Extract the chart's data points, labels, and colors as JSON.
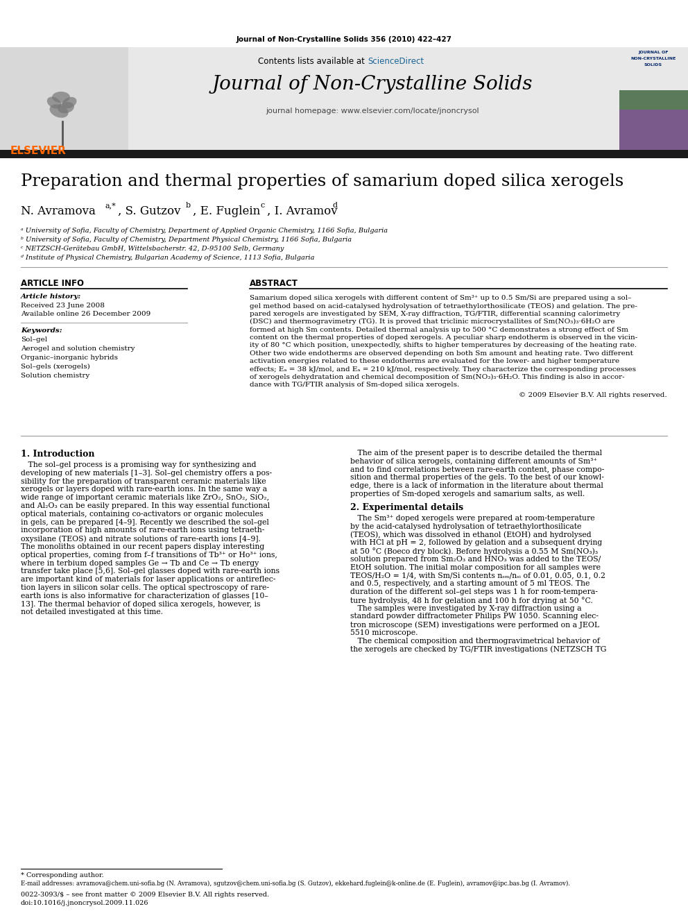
{
  "page_title": "Journal of Non-Crystalline Solids 356 (2010) 422–427",
  "journal_name": "Journal of Non-Crystalline Solids",
  "journal_homepage": "journal homepage: www.elsevier.com/locate/jnoncrysol",
  "contents_text": "Contents lists available at ScienceDirect",
  "paper_title": "Preparation and thermal properties of samarium doped silica xerogels",
  "affil1": "ᵃ University of Sofia, Faculty of Chemistry, Department of Applied Organic Chemistry, 1166 Sofia, Bulgaria",
  "affil2": "ᵇ University of Sofia, Faculty of Chemistry, Department Physical Chemistry, 1166 Sofia, Bulgaria",
  "affil3": "ᶜ NETZSCH-Gerätebau GmbH, Wittelsbacherstr. 42, D-95100 Selb, Germany",
  "affil4": "ᵈ Institute of Physical Chemistry, Bulgarian Academy of Science, 1113 Sofia, Bulgaria",
  "article_info_title": "ARTICLE INFO",
  "article_history_title": "Article history:",
  "received": "Received 23 June 2008",
  "available": "Available online 26 December 2009",
  "keywords_title": "Keywords:",
  "keywords": [
    "Sol–gel",
    "Aerogel and solution chemistry",
    "Organic–inorganic hybrids",
    "Sol–gels (xerogels)",
    "Solution chemistry"
  ],
  "abstract_title": "ABSTRACT",
  "copyright": "© 2009 Elsevier B.V. All rights reserved.",
  "intro_title": "1. Introduction",
  "exp_title": "2. Experimental details",
  "footnote_star": "* Corresponding author.",
  "footnote_email": "E-mail addresses: avramova@chem.uni-sofia.bg (N. Avramova), sgutzov@chem.uni-sofia.bg (S. Gutzov), ekkehard.fuglein@k-online.de (E. Fuglein), avramov@ipc.bas.bg (I. Avramov).",
  "issn": "0022-3093/$ – see front matter © 2009 Elsevier B.V. All rights reserved.",
  "doi": "doi:10.1016/j.jnoncrysol.2009.11.026",
  "bg_color": "#ffffff",
  "header_bg": "#e8e8e8",
  "dark_bar_color": "#1a1a1a",
  "elsevier_orange": "#ff6600",
  "sciencedirect_blue": "#1a6496",
  "abs_lines": [
    "Samarium doped silica xerogels with different content of Sm³⁺ up to 0.5 Sm/Si are prepared using a sol–",
    "gel method based on acid-catalysed hydrolysation of tetraethylorthosilicate (TEOS) and gelation. The pre-",
    "pared xerogels are investigated by SEM, X-ray diffraction, TG/FTIR, differential scanning calorimetry",
    "(DSC) and thermogravimetry (TG). It is proved that triclinic microcrystallites of Sm(NO₃)₃·6H₂O are",
    "formed at high Sm contents. Detailed thermal analysis up to 500 °C demonstrates a strong effect of Sm",
    "content on the thermal properties of doped xerogels. A peculiar sharp endotherm is observed in the vicin-",
    "ity of 80 °C which position, unexpectedly, shifts to higher temperatures by decreasing of the heating rate.",
    "Other two wide endotherms are observed depending on both Sm amount and heating rate. Two different",
    "activation energies related to these endotherms are evaluated for the lower- and higher temperature",
    "effects; Eₐ = 38 kJ/mol, and Eₐ = 210 kJ/mol, respectively. They characterize the corresponding processes",
    "of xerogels dehydratation and chemical decomposition of Sm(NO₃)₃·6H₂O. This finding is also in accor-",
    "dance with TG/FTIR analysis of Sm-doped silica xerogels."
  ],
  "intro_col1": [
    "   The sol–gel process is a promising way for synthesizing and",
    "developing of new materials [1–3]. Sol–gel chemistry offers a pos-",
    "sibility for the preparation of transparent ceramic materials like",
    "xerogels or layers doped with rare-earth ions. In the same way a",
    "wide range of important ceramic materials like ZrO₂, SnO₂, SiO₂,",
    "and Al₂O₃ can be easily prepared. In this way essential functional",
    "optical materials, containing co-activators or organic molecules",
    "in gels, can be prepared [4–9]. Recently we described the sol–gel",
    "incorporation of high amounts of rare-earth ions using tetraeth-",
    "oxysilane (TEOS) and nitrate solutions of rare-earth ions [4–9].",
    "The monoliths obtained in our recent papers display interesting",
    "optical properties, coming from f–f transitions of Tb³⁺ or Ho³⁺ ions,",
    "where in terbium doped samples Ge → Tb and Ce → Tb energy",
    "transfer take place [5,6]. Sol–gel glasses doped with rare-earth ions",
    "are important kind of materials for laser applications or antireflec-",
    "tion layers in silicon solar cells. The optical spectroscopy of rare-",
    "earth ions is also informative for characterization of glasses [10–",
    "13]. The thermal behavior of doped silica xerogels, however, is",
    "not detailed investigated at this time."
  ],
  "intro_col2": [
    "   The aim of the present paper is to describe detailed the thermal",
    "behavior of silica xerogels, containing different amounts of Sm³⁺",
    "and to find correlations between rare-earth content, phase compo-",
    "sition and thermal properties of the gels. To the best of our knowl-",
    "edge, there is a lack of information in the literature about thermal",
    "properties of Sm-doped xerogels and samarium salts, as well."
  ],
  "exp_lines": [
    "   The Sm³⁺ doped xerogels were prepared at room-temperature",
    "by the acid-catalysed hydrolysation of tetraethylorthosilicate",
    "(TEOS), which was dissolved in ethanol (EtOH) and hydrolysed",
    "with HCl at pH = 2, followed by gelation and a subsequent drying",
    "at 50 °C (Boeco dry block). Before hydrolysis a 0.55 M Sm(NO₃)₃",
    "solution prepared from Sm₂O₃ and HNO₃ was added to the TEOS/",
    "EtOH solution. The initial molar composition for all samples were",
    "TEOS/H₂O = 1/4, with Sm/Si contents nₛₘ/nₛᵢ of 0.01, 0.05, 0.1, 0.2",
    "and 0.5, respectively, and a starting amount of 5 ml TEOS. The",
    "duration of the different sol–gel steps was 1 h for room-tempera-",
    "ture hydrolysis, 48 h for gelation and 100 h for drying at 50 °C.",
    "   The samples were investigated by X-ray diffraction using a",
    "standard powder diffractometer Philips PW 1050. Scanning elec-",
    "tron microscope (SEM) investigations were performed on a JEOL",
    "5510 microscope.",
    "   The chemical composition and thermogravimetrical behavior of",
    "the xerogels are checked by TG/FTIR investigations (NETZSCH TG"
  ]
}
